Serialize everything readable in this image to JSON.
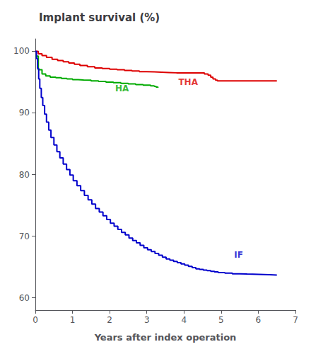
{
  "chart_data": {
    "type": "step",
    "title": "Implant survival (%)",
    "xlabel": "Years after index operation",
    "xlim": [
      0,
      7
    ],
    "ylim": [
      58,
      102
    ],
    "xticks": [
      0,
      1,
      2,
      3,
      4,
      5,
      6,
      7
    ],
    "yticks": [
      60,
      70,
      80,
      90,
      100
    ],
    "grid": false,
    "series": [
      {
        "name": "THA",
        "color": "#DD0000",
        "x": [
          0,
          0.08,
          0.18,
          0.3,
          0.45,
          0.6,
          0.75,
          0.9,
          1.05,
          1.2,
          1.4,
          1.6,
          1.8,
          2.0,
          2.2,
          2.4,
          2.6,
          2.8,
          3.0,
          3.2,
          3.4,
          3.6,
          3.8,
          4.0,
          4.2,
          4.4,
          4.55,
          4.65,
          4.72,
          4.78,
          4.85,
          4.9,
          5.0,
          5.5,
          6.0,
          6.5
        ],
        "values": [
          100,
          99.6,
          99.3,
          99.0,
          98.7,
          98.5,
          98.3,
          98.1,
          97.9,
          97.7,
          97.5,
          97.3,
          97.2,
          97.1,
          97.0,
          96.9,
          96.8,
          96.7,
          96.65,
          96.6,
          96.55,
          96.5,
          96.5,
          96.5,
          96.5,
          96.5,
          96.3,
          96.1,
          95.8,
          95.5,
          95.3,
          95.2,
          95.2,
          95.2,
          95.2,
          95.2
        ]
      },
      {
        "name": "HA",
        "color": "#00AA00",
        "x": [
          0,
          0.08,
          0.18,
          0.28,
          0.4,
          0.55,
          0.7,
          0.85,
          1.0,
          1.15,
          1.3,
          1.5,
          1.7,
          1.9,
          2.1,
          2.3,
          2.5,
          2.7,
          2.9,
          3.1,
          3.2,
          3.25,
          3.3
        ],
        "values": [
          99.2,
          97.0,
          96.3,
          96.0,
          95.8,
          95.7,
          95.6,
          95.5,
          95.4,
          95.35,
          95.3,
          95.2,
          95.1,
          95.0,
          94.9,
          94.8,
          94.7,
          94.6,
          94.5,
          94.4,
          94.3,
          94.2,
          94.1
        ]
      },
      {
        "name": "IF",
        "color": "#0000CC",
        "x": [
          0,
          0.03,
          0.06,
          0.09,
          0.12,
          0.16,
          0.2,
          0.25,
          0.3,
          0.36,
          0.42,
          0.5,
          0.58,
          0.66,
          0.75,
          0.84,
          0.93,
          1.02,
          1.12,
          1.22,
          1.32,
          1.42,
          1.52,
          1.62,
          1.72,
          1.82,
          1.92,
          2.02,
          2.12,
          2.22,
          2.32,
          2.42,
          2.52,
          2.62,
          2.72,
          2.82,
          2.92,
          3.02,
          3.12,
          3.22,
          3.32,
          3.42,
          3.52,
          3.62,
          3.72,
          3.82,
          3.92,
          4.02,
          4.12,
          4.22,
          4.32,
          4.42,
          4.52,
          4.62,
          4.72,
          4.82,
          4.92,
          5.1,
          5.3,
          5.5,
          5.7,
          6.0,
          6.3,
          6.5
        ],
        "values": [
          100,
          98.8,
          97.2,
          95.5,
          94.0,
          92.5,
          91.2,
          89.8,
          88.5,
          87.2,
          86.0,
          84.8,
          83.7,
          82.7,
          81.7,
          80.8,
          79.9,
          79.0,
          78.2,
          77.4,
          76.6,
          75.9,
          75.2,
          74.5,
          73.9,
          73.3,
          72.7,
          72.1,
          71.6,
          71.1,
          70.6,
          70.2,
          69.7,
          69.3,
          68.9,
          68.5,
          68.1,
          67.8,
          67.5,
          67.2,
          66.9,
          66.6,
          66.3,
          66.1,
          65.9,
          65.7,
          65.5,
          65.3,
          65.1,
          64.9,
          64.7,
          64.6,
          64.5,
          64.4,
          64.3,
          64.2,
          64.1,
          64.0,
          63.9,
          63.85,
          63.8,
          63.75,
          63.7,
          63.7
        ]
      }
    ],
    "annotations": [
      {
        "text": "THA",
        "x": 3.85,
        "y": 93.8,
        "color": "#DD0000"
      },
      {
        "text": "HA",
        "x": 2.15,
        "y": 92.8,
        "color": "#00AA00"
      },
      {
        "text": "IF",
        "x": 5.35,
        "y": 65.8,
        "color": "#0000CC"
      }
    ]
  }
}
